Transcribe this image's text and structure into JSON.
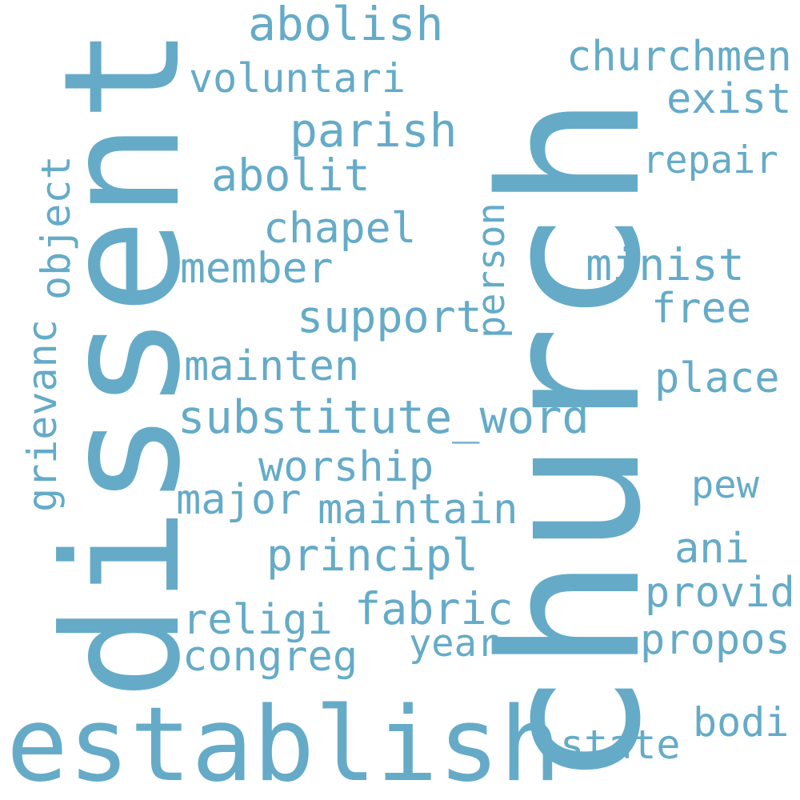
{
  "color": "#65abc8",
  "words": [
    "church",
    "dissent",
    "establish",
    "abolish",
    "churchmen",
    "voluntari",
    "exist",
    "parish",
    "repair",
    "abolit",
    "object",
    "grievanc",
    "chapel",
    "person",
    "member",
    "minist",
    "support",
    "free",
    "mainten",
    "place",
    "substitute_word",
    "worship",
    "pew",
    "major",
    "maintain",
    "ani",
    "principl",
    "provid",
    "fabric",
    "religi",
    "propos",
    "year",
    "congreg",
    "bodi",
    "state"
  ]
}
